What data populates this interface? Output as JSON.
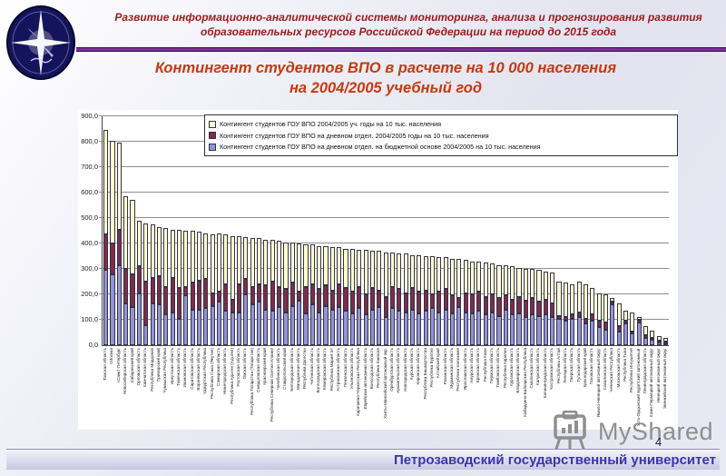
{
  "header": {
    "project_line": "Развитие информационно-аналитической системы мониторинга, анализа и прогнозирования развития образовательных ресурсов Российской Федерации на период до 2015 года"
  },
  "title": {
    "line1": "Контингент студентов ВПО в расчете на 10 000 населения",
    "line2": "на 2004/2005 учебный год"
  },
  "footer": {
    "university": "Петрозаводский государственный университет",
    "page_number": "4",
    "watermark": "MyShared"
  },
  "colors": {
    "series_total": "#ffffcc",
    "series_day": "#7e2c47",
    "series_budget": "#9393d6",
    "accent_title": "#c53a0e",
    "accent_header": "#9e1a1a",
    "footer_text": "#3a34ae"
  },
  "chart_data": {
    "type": "bar",
    "title": "Контингент студентов ВПО в расчете на 10 000 населения на 2004/2005 учебный год",
    "xlabel": "",
    "ylabel": "",
    "ylim": [
      0,
      900
    ],
    "ytick_step": 100,
    "ytick_labels": [
      "0,0",
      "100,0",
      "200,0",
      "300,0",
      "400,0",
      "500,0",
      "600,0",
      "700,0",
      "800,0",
      "900,0"
    ],
    "grid": true,
    "legend_position": "top-right",
    "categories": [
      "Томская область",
      "г.Москва",
      "г.Санкт-Петербург",
      "Новосибирская область",
      "Хабаровский край",
      "Орловская область",
      "Камчатская область",
      "Республика Мордовия",
      "Приморский край",
      "Чувашская Республика",
      "Иркутская область",
      "Тюменская область",
      "Ивановская область",
      "Саратовская область",
      "Воронежская область",
      "Удмуртская Республика",
      "Республика Саха (Якутия)",
      "Самарская область",
      "Нижегородская область",
      "Республика Адыгея (Адыгея)",
      "Ростовская область",
      "Омская область",
      "Республика Татарстан (Татарстан)",
      "Свердловская область",
      "Красноярский край",
      "Республика Северная Осетия-Алания",
      "Челябинская область",
      "Ставропольский край",
      "Белгородская область",
      "Магаданская область",
      "Республика Дагестан",
      "Читинская область",
      "Волгоградская область",
      "Кемеровская область",
      "Республика Марий Эл",
      "Астраханская область",
      "Пензенская область",
      "Ульяновская область",
      "Карачаево-Черкесская Республика",
      "Еврейская автономная область",
      "Вологодская область",
      "Республика Хакасия",
      "Ханты-Мансийский автономный окр.",
      "Оренбургская область",
      "Архангельская область",
      "Новгородская область",
      "Курская область",
      "Кировская область",
      "Республика Башкортостан",
      "Республика Бурятия",
      "Алтайский край",
      "Рязанская область",
      "Мурманская область",
      "Республика Калмыкия",
      "Ярославская область",
      "Амурская область",
      "Брянская область",
      "Республика Коми",
      "Пермская область",
      "Тамбовская область",
      "Республика Карелия",
      "Курганская область",
      "Владимирская область",
      "Кабардино-Балкарская Республика",
      "Смоленская область",
      "Калужская область",
      "Калининградская область",
      "Костромская область",
      "Республика Алтай",
      "Липецкая область",
      "Тверская область",
      "Тульская область",
      "Краснодарский край",
      "Псковская область",
      "Ямало-Ненецкий автономный округ",
      "Сахалинская область",
      "Чеченская Республика",
      "Московская область",
      "Республика Тыва",
      "Республика Ингушетия",
      "Усть-Ордынский Бурятский автономный округ",
      "Ленинградская область",
      "Коми-Пермяцкий автономный округ",
      "Ненецкий автономный округ",
      "Эвенкийский автономный округ"
    ],
    "series": [
      {
        "name": "Контингент студентов ГОУ ВПО 2004/2005 уч. годы на 10 тыс. населения",
        "color": "#ffffcc",
        "values": [
          845,
          805,
          795,
          585,
          570,
          490,
          480,
          475,
          465,
          460,
          455,
          455,
          450,
          450,
          445,
          440,
          435,
          440,
          435,
          430,
          430,
          425,
          420,
          420,
          415,
          415,
          410,
          405,
          405,
          400,
          395,
          395,
          390,
          390,
          385,
          385,
          380,
          380,
          375,
          375,
          370,
          370,
          365,
          365,
          360,
          360,
          355,
          355,
          350,
          350,
          345,
          345,
          340,
          340,
          335,
          330,
          330,
          325,
          320,
          315,
          315,
          310,
          305,
          300,
          300,
          295,
          290,
          285,
          250,
          245,
          240,
          250,
          240,
          225,
          205,
          200,
          185,
          165,
          135,
          130,
          110,
          75,
          55,
          35,
          25
        ]
      },
      {
        "name": "Контингент студентов ГОУ ВПО на дневном отдел. 2004/2005 годы на 10 тыс. населения",
        "color": "#7e2c47",
        "values": [
          435,
          400,
          455,
          300,
          280,
          310,
          250,
          265,
          270,
          230,
          265,
          225,
          230,
          245,
          255,
          260,
          205,
          210,
          240,
          180,
          240,
          260,
          230,
          240,
          235,
          250,
          230,
          220,
          245,
          210,
          230,
          240,
          220,
          235,
          215,
          240,
          225,
          210,
          230,
          200,
          225,
          215,
          190,
          230,
          220,
          205,
          225,
          210,
          215,
          200,
          210,
          220,
          195,
          185,
          205,
          200,
          210,
          190,
          200,
          185,
          195,
          180,
          190,
          175,
          185,
          170,
          180,
          165,
          115,
          110,
          120,
          130,
          105,
          120,
          95,
          90,
          170,
          75,
          95,
          55,
          100,
          40,
          28,
          18,
          12
        ]
      },
      {
        "name": "Контингент студентов ГОУ ВПО на дневном отдел. на бюджетной основе 2004/2005 на 10 тыс. населения",
        "color": "#9393d6",
        "values": [
          295,
          280,
          315,
          165,
          150,
          205,
          80,
          165,
          160,
          120,
          130,
          105,
          195,
          140,
          140,
          145,
          155,
          170,
          135,
          130,
          130,
          200,
          160,
          170,
          140,
          135,
          150,
          130,
          155,
          175,
          125,
          160,
          130,
          155,
          140,
          150,
          135,
          125,
          145,
          120,
          140,
          150,
          110,
          145,
          135,
          130,
          140,
          125,
          135,
          145,
          130,
          140,
          125,
          150,
          130,
          125,
          135,
          120,
          130,
          115,
          140,
          120,
          125,
          110,
          120,
          115,
          120,
          110,
          105,
          95,
          105,
          110,
          85,
          95,
          70,
          60,
          160,
          55,
          85,
          45,
          90,
          30,
          22,
          12,
          8
        ]
      }
    ]
  }
}
